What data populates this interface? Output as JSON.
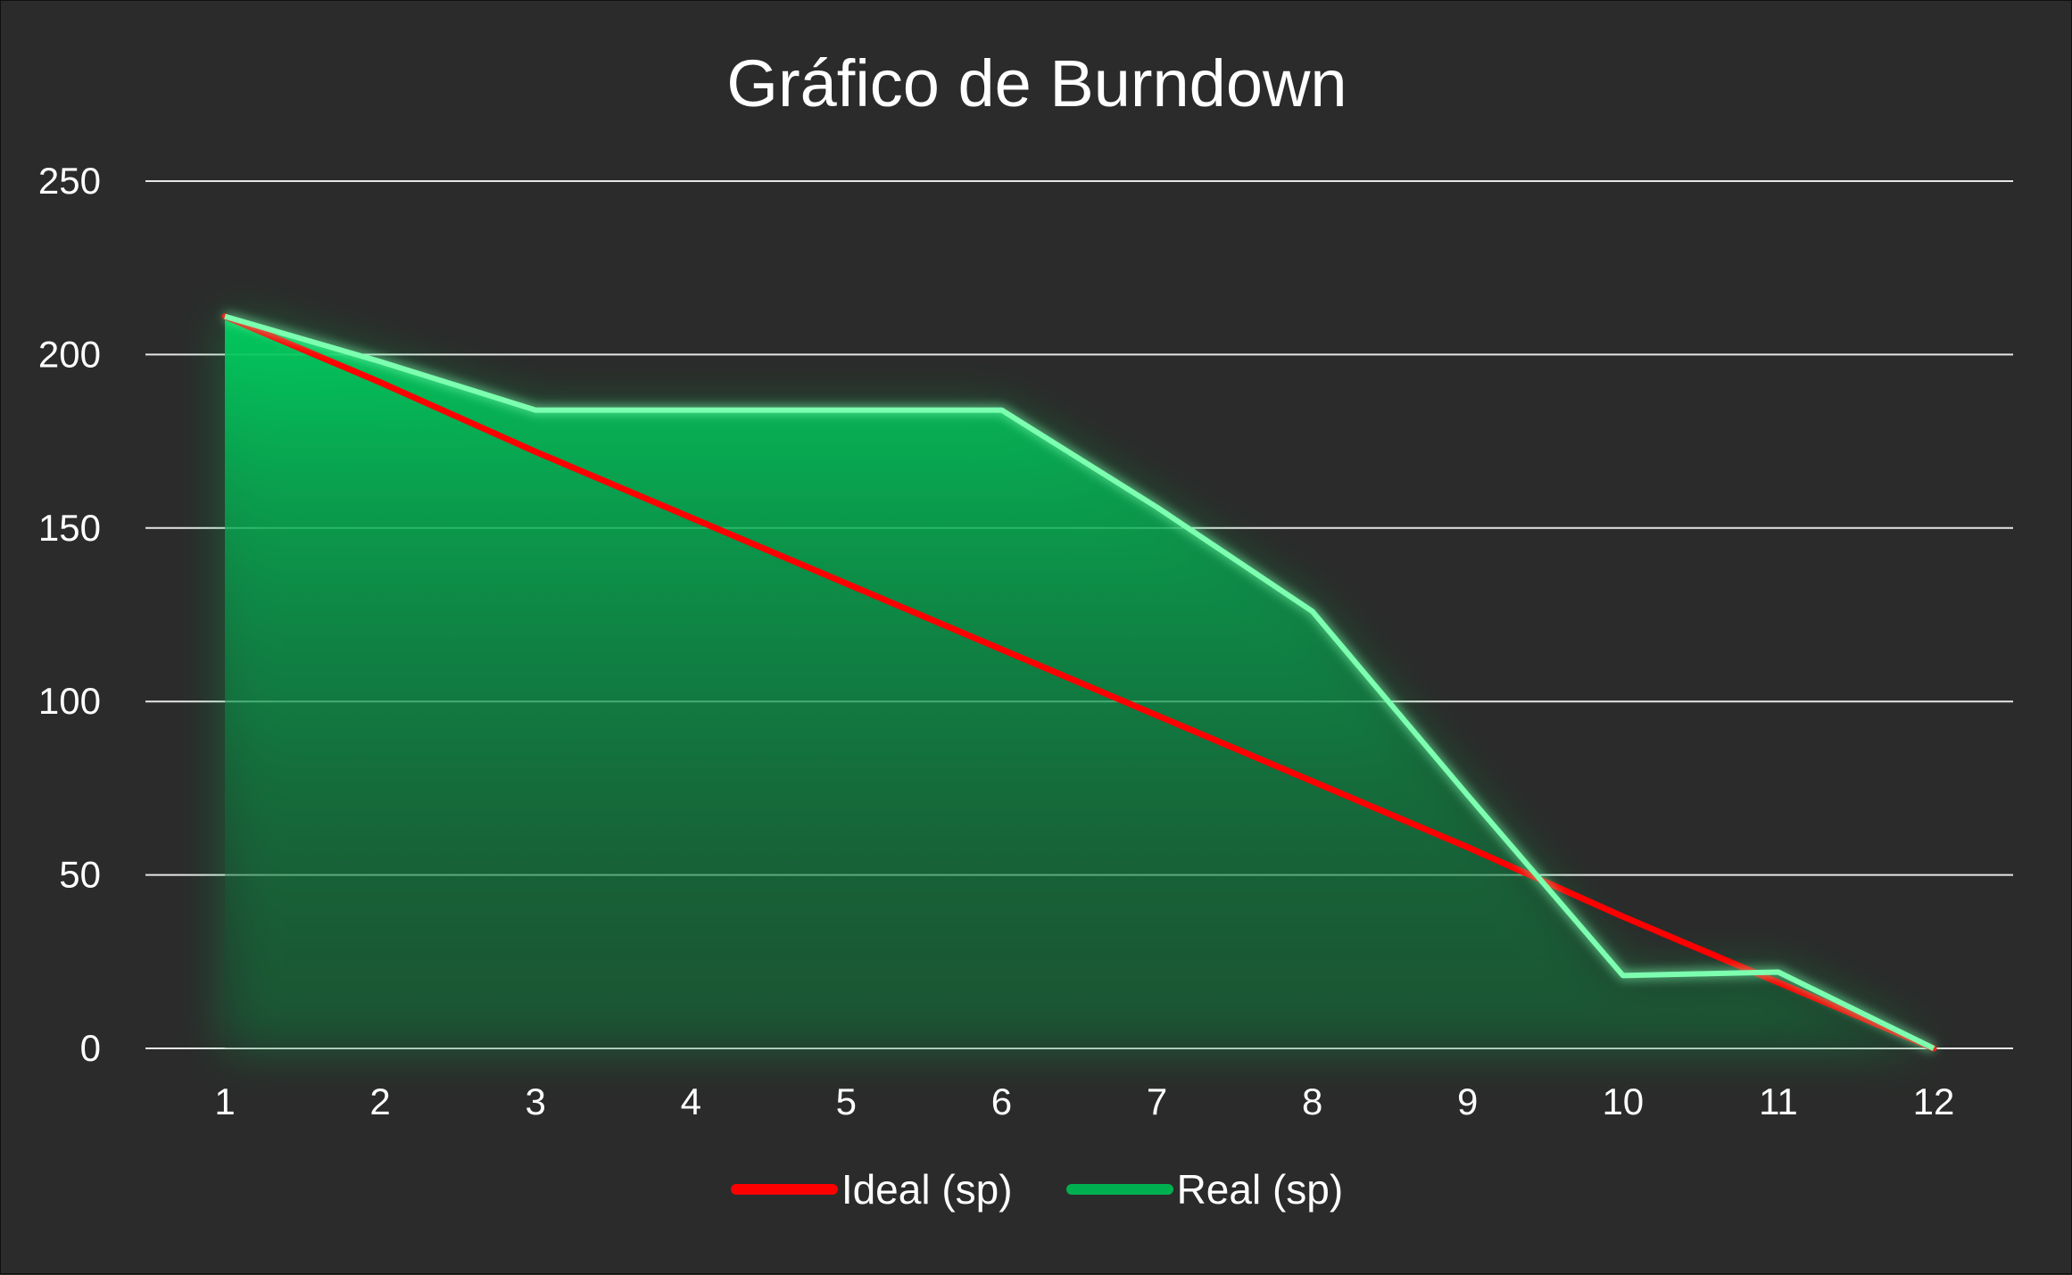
{
  "chart_data": {
    "type": "line",
    "title": "Gráfico de Burndown",
    "xlabel": "",
    "ylabel": "",
    "categories": [
      "1",
      "2",
      "3",
      "4",
      "5",
      "6",
      "7",
      "8",
      "9",
      "10",
      "11",
      "12"
    ],
    "series": [
      {
        "name": "Ideal (sp)",
        "color": "#ff0000",
        "values": [
          211,
          192,
          172,
          153,
          134,
          115,
          96,
          77,
          58,
          38,
          19,
          0
        ]
      },
      {
        "name": "Real (sp)",
        "color": "#00b050",
        "fill": "area",
        "values": [
          211,
          198,
          184,
          184,
          184,
          184,
          156,
          126,
          73,
          21,
          22,
          0
        ]
      }
    ],
    "ylim": [
      0,
      250
    ],
    "yticks": [
      "0",
      "50",
      "100",
      "150",
      "200",
      "250"
    ],
    "grid": true,
    "legend": "bottom"
  }
}
